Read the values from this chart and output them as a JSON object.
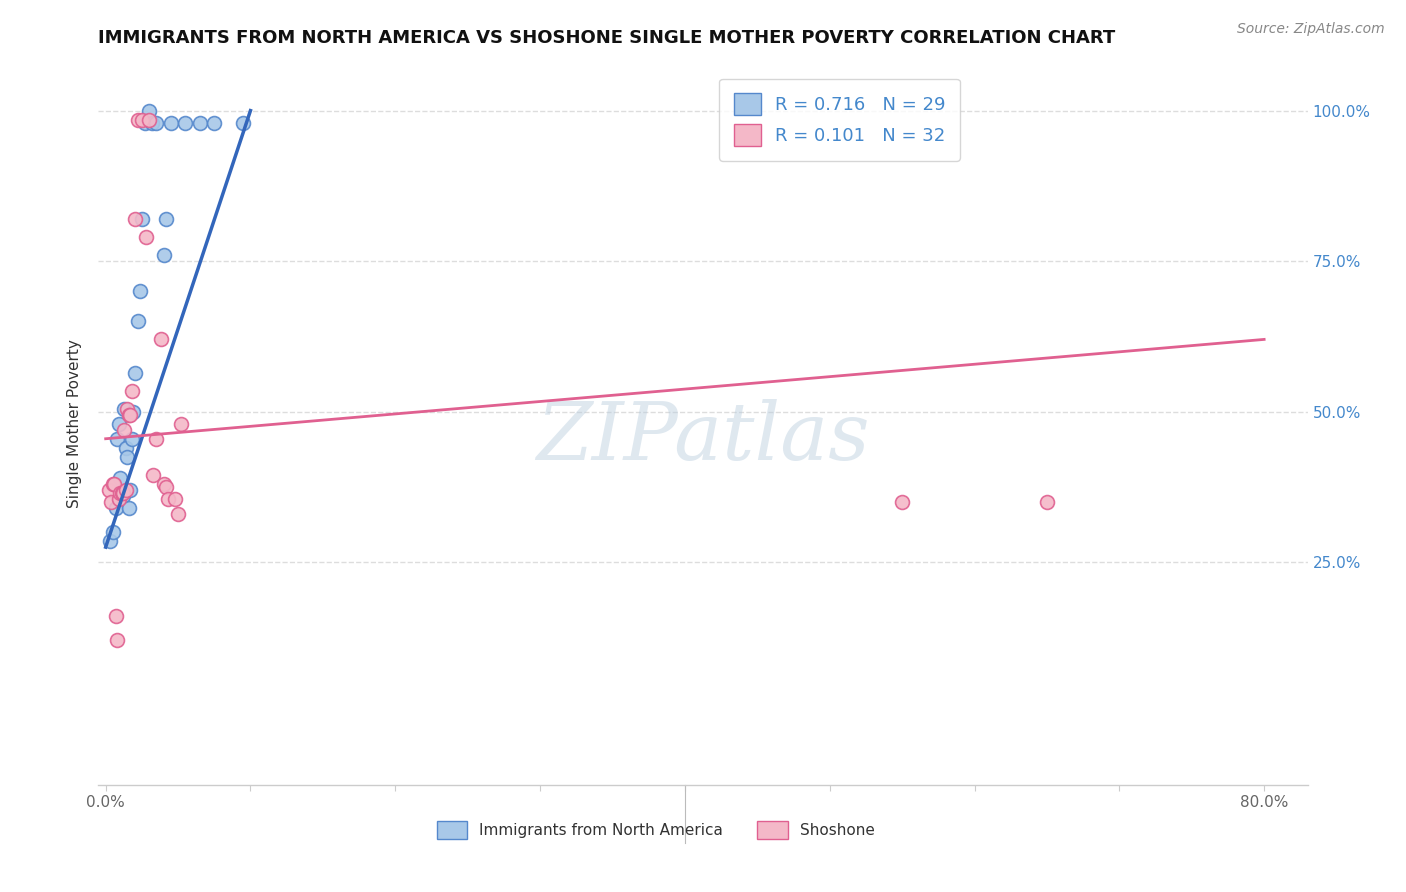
{
  "title": "IMMIGRANTS FROM NORTH AMERICA VS SHOSHONE SINGLE MOTHER POVERTY CORRELATION CHART",
  "source": "Source: ZipAtlas.com",
  "ylabel": "Single Mother Poverty",
  "x_tick_positions": [
    0,
    10,
    20,
    30,
    40,
    50,
    60,
    70,
    80
  ],
  "x_tick_labels": [
    "0.0%",
    "",
    "",
    "",
    "",
    "",
    "",
    "",
    "80.0%"
  ],
  "y_ticks": [
    25,
    50,
    75,
    100
  ],
  "y_tick_labels": [
    "25.0%",
    "50.0%",
    "75.0%",
    "100.0%"
  ],
  "xlim": [
    -0.5,
    83
  ],
  "ylim": [
    -12,
    108
  ],
  "watermark": "ZIPatlas",
  "blue_R": "0.716",
  "blue_N": "29",
  "pink_R": "0.101",
  "pink_N": "32",
  "blue_scatter_x": [
    0.3,
    0.5,
    0.7,
    0.8,
    0.9,
    1.0,
    1.2,
    1.3,
    1.4,
    1.5,
    1.6,
    1.7,
    1.8,
    1.9,
    2.0,
    2.2,
    2.4,
    2.5,
    2.7,
    3.0,
    3.2,
    3.5,
    4.0,
    4.2,
    4.5,
    5.5,
    6.5,
    7.5,
    9.5
  ],
  "blue_scatter_y": [
    28.5,
    30,
    34,
    45.5,
    48,
    39,
    36,
    50.5,
    44,
    42.5,
    34,
    37,
    45.5,
    50,
    56.5,
    65,
    70,
    82,
    98,
    100,
    98,
    98,
    76,
    82,
    98,
    98,
    98,
    98,
    98
  ],
  "pink_scatter_x": [
    0.2,
    0.4,
    0.5,
    0.6,
    0.7,
    0.8,
    0.9,
    1.0,
    1.1,
    1.2,
    1.3,
    1.4,
    1.5,
    1.6,
    1.7,
    1.8,
    2.0,
    2.2,
    2.5,
    2.8,
    3.0,
    3.3,
    3.5,
    3.8,
    4.0,
    4.2,
    4.3,
    4.8,
    5.0,
    5.2,
    55,
    65
  ],
  "pink_scatter_y": [
    37,
    35,
    38,
    38,
    16,
    12,
    35.5,
    36.5,
    36.5,
    36.5,
    47,
    37,
    50.5,
    49.5,
    49.5,
    53.5,
    82,
    98.5,
    98.5,
    79,
    98.5,
    39.5,
    45.5,
    62,
    38,
    37.5,
    35.5,
    35.5,
    33,
    48,
    35,
    35
  ],
  "blue_line_x": [
    0,
    10
  ],
  "blue_line_y": [
    27.5,
    100
  ],
  "pink_line_x": [
    0,
    80
  ],
  "pink_line_y": [
    45.5,
    62
  ],
  "blue_color": "#A8C8E8",
  "pink_color": "#F4B8C8",
  "blue_edge_color": "#5588CC",
  "pink_edge_color": "#E06090",
  "blue_line_color": "#3366BB",
  "pink_line_color": "#E06090",
  "text_color": "#333333",
  "right_axis_color": "#4488CC",
  "background_color": "#FFFFFF",
  "grid_color": "#DDDDDD",
  "title_fontsize": 13,
  "axis_label_fontsize": 11,
  "tick_fontsize": 11,
  "legend_fontsize": 13,
  "source_fontsize": 10,
  "marker_size": 100
}
